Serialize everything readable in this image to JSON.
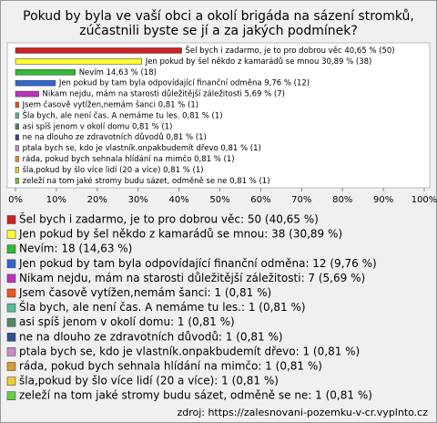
{
  "chart_data": {
    "type": "hbar",
    "title": [
      "Pokud by byla ve vaší obci a okolí brigáda na sázení stromků,",
      "zúčastnili byste se jí a za jakých podmínek?"
    ],
    "categories": [
      "Šel bych i zadarmo, je to pro dobrou věc",
      "Jen pokud by šel někdo z kamarádů se mnou",
      "Nevím",
      "Jen pokud by tam byla odpovídající finanční odměna",
      "Nikam nejdu, mám na starosti důležitější záležitosti",
      "Jsem časově vytížen,nemám šanci",
      "Šla bych, ale není čas. A nemáme tu les.",
      "asi spíš jenom v okolí domu",
      "ne na dlouho ze zdravotních důvodů",
      "ptala bych se, kdo je vlastník.onpakbudemít dřevo",
      "ráda, pokud bych sehnala hlídání na mimčo",
      "šla,pokud by šlo více lidí (20 a více)",
      "zeleží na tom jaké stromy budu sázet, odměně se ne"
    ],
    "values": [
      40.65,
      30.89,
      14.63,
      9.76,
      5.69,
      0.81,
      0.81,
      0.81,
      0.81,
      0.81,
      0.81,
      0.81,
      0.81
    ],
    "value_labels": [
      "Šel bych i zadarmo, je to pro dobrou věc 40,65 % (50)",
      "Jen pokud by šel někdo z kamarádů se mnou 30,89 % (38)",
      "Nevím 14,63 % (18)",
      "Jen pokud by tam byla odpovídající finanční odměna 9,76 % (12)",
      "Nikam nejdu, mám na starosti důležitější záležitosti 5,69 % (7)",
      "Jsem časově vytížen,nemám šanci 0,81 % (1)",
      "Šla bych, ale není čas. A nemáme tu les. 0,81 % (1)",
      "asi spíš jenom v okolí domu 0,81 % (1)",
      "ne na dlouho ze zdravotních důvodů 0,81 % (1)",
      "ptala bych se, kdo je vlastník.onpakbudemít dřevo 0,81 % (1)",
      "ráda, pokud bych sehnala hlídání na mimčo 0,81 % (1)",
      "šla,pokud by šlo více lidí (20 a více) 0,81 % (1)",
      "zeleží na tom jaké stromy budu sázet, odměně se ne 0,81 % (1)"
    ],
    "legend_labels": [
      "Šel bych i zadarmo, je to pro dobrou věc: 50 (40,65 %)",
      "Jen pokud by šel někdo z kamarádů se mnou: 38 (30,89 %)",
      "Nevím: 18 (14,63 %)",
      "Jen pokud by tam byla odpovídající finanční odměna: 12 (9,76 %)",
      "Nikam nejdu, mám na starosti důležitější záležitosti: 7 (5,69 %)",
      "Jsem časově vytížen,nemám šanci: 1 (0,81 %)",
      "Šla bych, ale není čas. A nemáme tu les.: 1 (0,81 %)",
      "asi spíš jenom v okolí domu: 1 (0,81 %)",
      "ne na dlouho ze zdravotních důvodů: 1 (0,81 %)",
      "ptala bych se, kdo je vlastník.onpakbudemít dřevo: 1 (0,81 %)",
      "ráda, pokud bych sehnala hlídání na mimčo: 1 (0,81 %)",
      "šla,pokud by šlo více lidí (20 a více): 1 (0,81 %)",
      "zeleží na tom jaké stromy budu sázet, odměně se ne: 1 (0,81 %)"
    ],
    "colors": [
      "#cc2222",
      "#ffff33",
      "#33bb33",
      "#3366cc",
      "#bb33bb",
      "#ee5522",
      "#55bb99",
      "#558866",
      "#334f99",
      "#cc88cc",
      "#dd9933",
      "#eecc33",
      "#66cc44"
    ],
    "xlim": [
      0,
      100
    ],
    "xticks": [
      {
        "value": 0,
        "label": "0%"
      },
      {
        "value": 10,
        "label": "10%"
      },
      {
        "value": 20,
        "label": "20%"
      },
      {
        "value": 30,
        "label": "30%"
      },
      {
        "value": 40,
        "label": "40%"
      },
      {
        "value": 50,
        "label": "50%"
      },
      {
        "value": 60,
        "label": "60%"
      },
      {
        "value": 70,
        "label": "70%"
      },
      {
        "value": 80,
        "label": "80%"
      },
      {
        "value": 90,
        "label": "90%"
      },
      {
        "value": 100,
        "label": "100%"
      }
    ],
    "source": "zdroj: https://zalesnovani-pozemku-v-cr.vyplnto.cz"
  }
}
